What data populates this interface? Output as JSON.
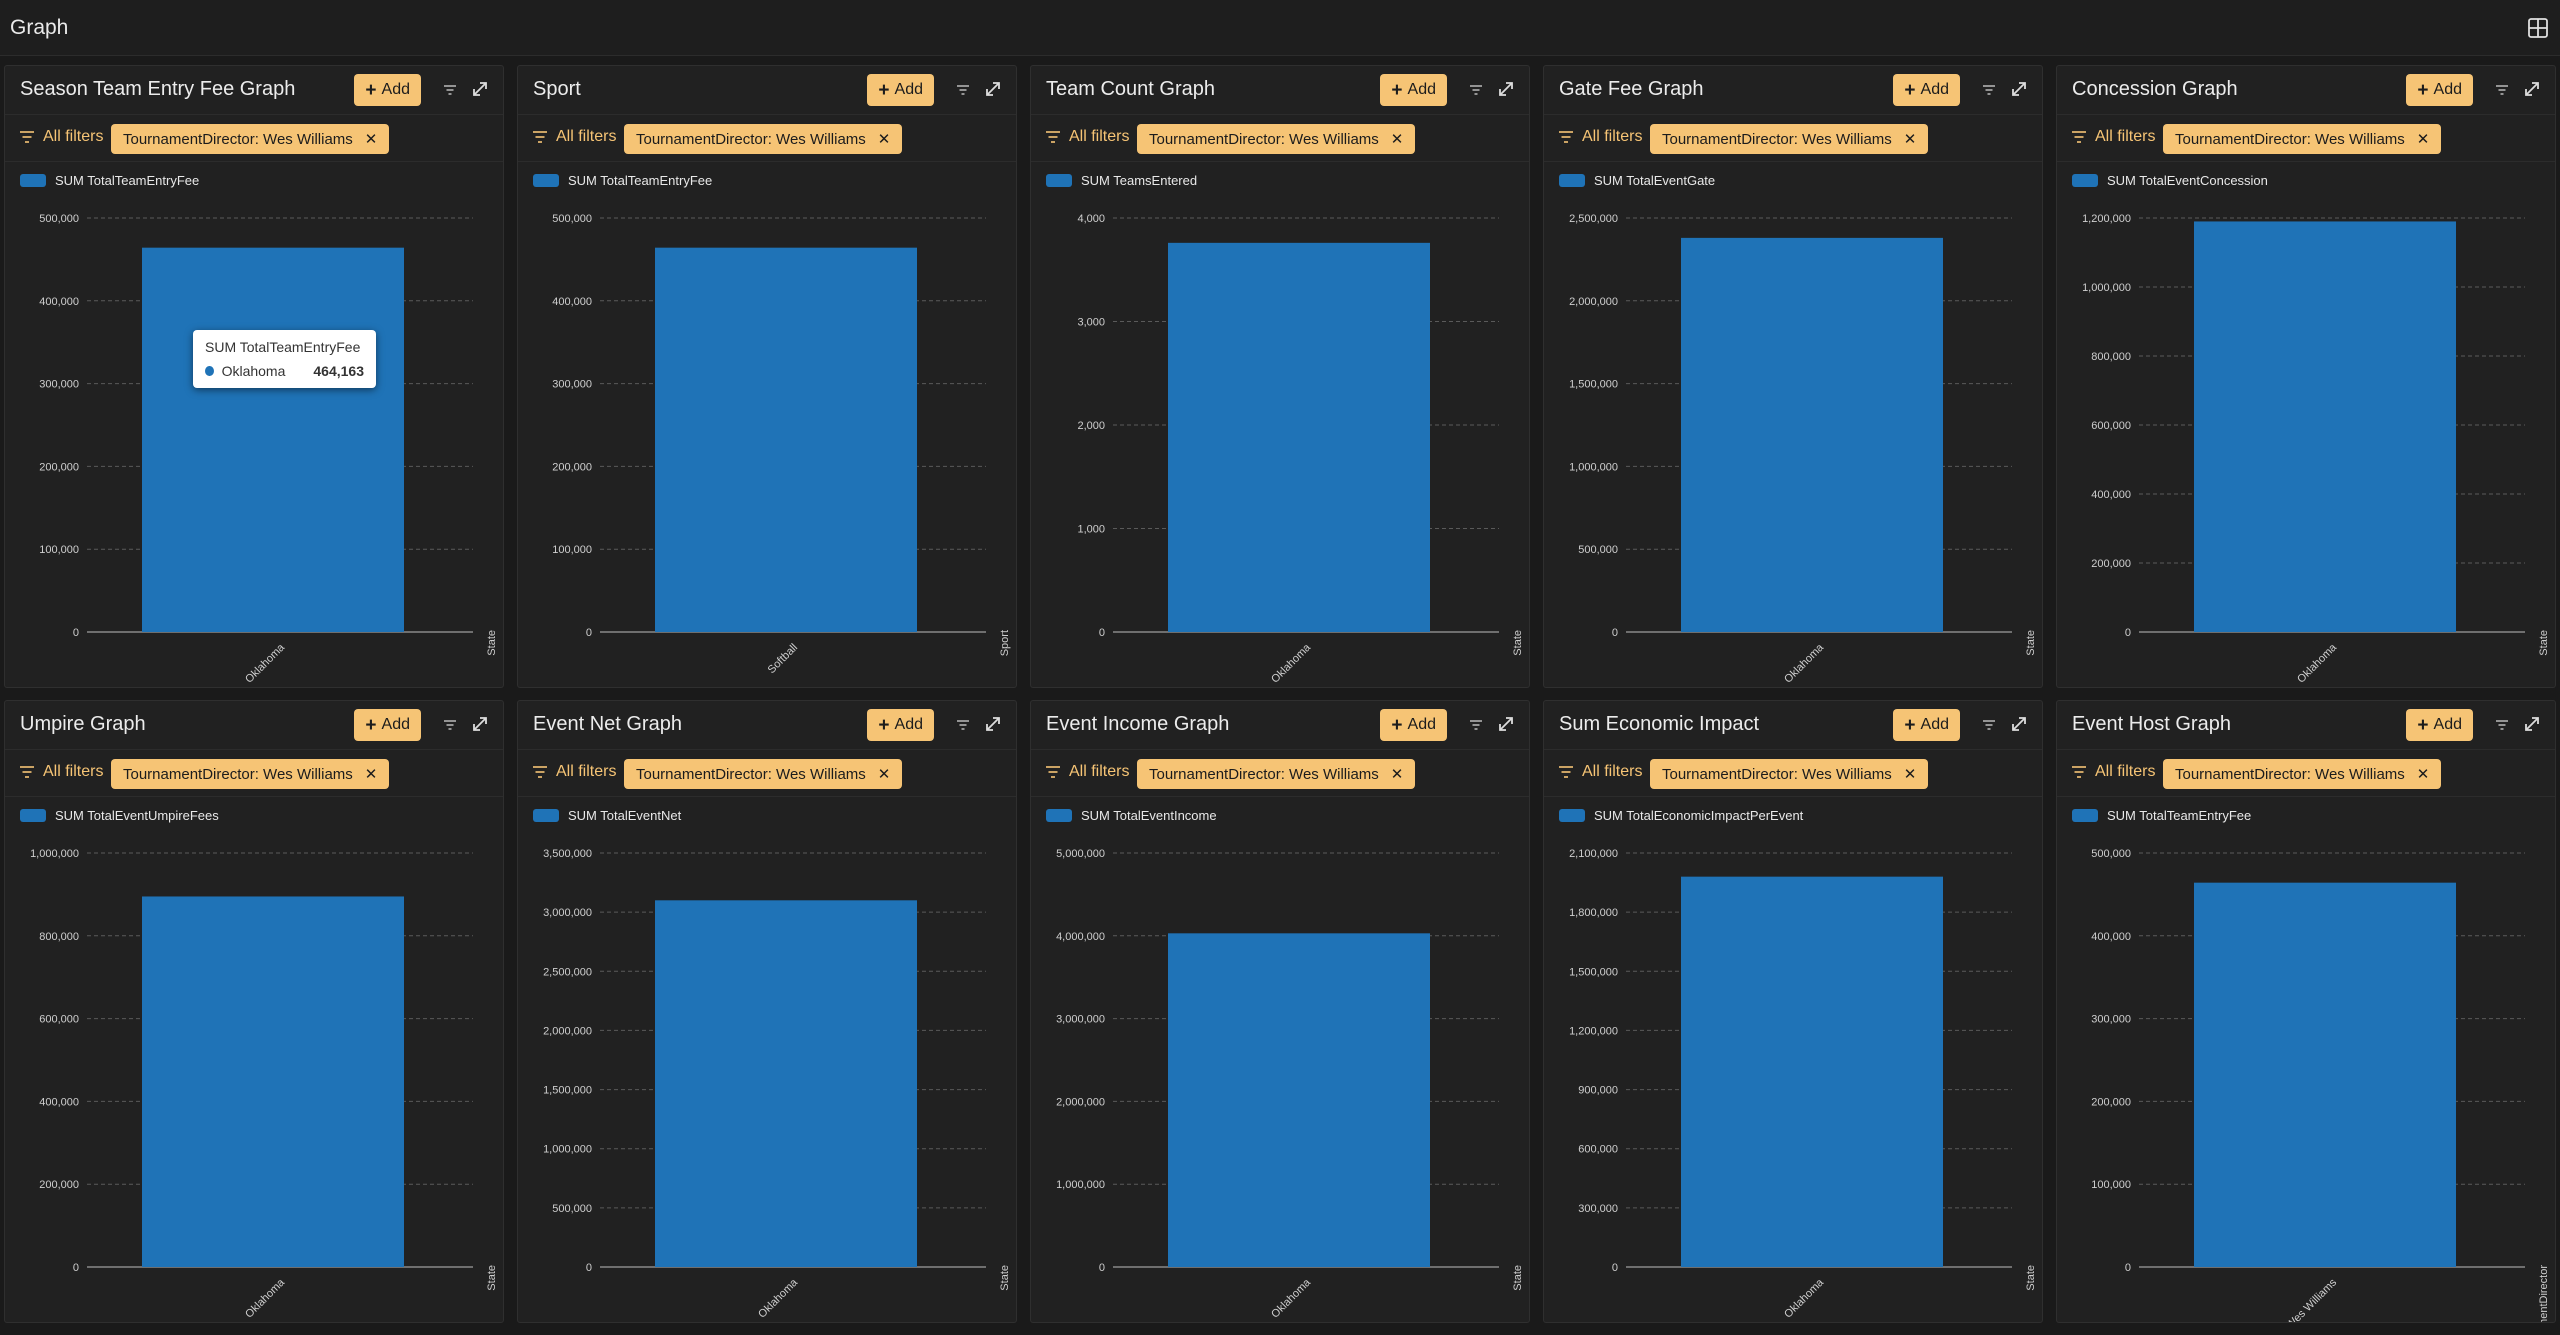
{
  "page": {
    "title": "Graph",
    "layout_icon": "layout-grid-icon"
  },
  "common": {
    "add_label": "Add",
    "all_filters_label": "All filters",
    "filter_chip": "TournamentDirector: Wes Williams",
    "accent_color": "#f6c475",
    "bar_color": "#1f73b7"
  },
  "panels": [
    {
      "title": "Season Team Entry Fee Graph",
      "tooltip": {
        "title": "SUM TotalTeamEntryFee",
        "label": "Oklahoma",
        "value": "464,163"
      },
      "chart_data": {
        "type": "bar",
        "series": [
          {
            "name": "SUM TotalTeamEntryFee",
            "values": [
              464163
            ]
          }
        ],
        "categories": [
          "Oklahoma"
        ],
        "xlabel": "State",
        "ylim": [
          0,
          500000
        ],
        "yticks": [
          "0",
          "100,000",
          "200,000",
          "300,000",
          "400,000",
          "500,000"
        ]
      }
    },
    {
      "title": "Sport",
      "chart_data": {
        "type": "bar",
        "series": [
          {
            "name": "SUM TotalTeamEntryFee",
            "values": [
              464163
            ]
          }
        ],
        "categories": [
          "Softball"
        ],
        "xlabel": "Sport",
        "ylim": [
          0,
          500000
        ],
        "yticks": [
          "0",
          "100,000",
          "200,000",
          "300,000",
          "400,000",
          "500,000"
        ]
      }
    },
    {
      "title": "Team Count Graph",
      "chart_data": {
        "type": "bar",
        "series": [
          {
            "name": "SUM TeamsEntered",
            "values": [
              3760
            ]
          }
        ],
        "categories": [
          "Oklahoma"
        ],
        "xlabel": "State",
        "ylim": [
          0,
          4000
        ],
        "yticks": [
          "0",
          "1,000",
          "2,000",
          "3,000",
          "4,000"
        ]
      }
    },
    {
      "title": "Gate Fee Graph",
      "chart_data": {
        "type": "bar",
        "series": [
          {
            "name": "SUM TotalEventGate",
            "values": [
              2380000
            ]
          }
        ],
        "categories": [
          "Oklahoma"
        ],
        "xlabel": "State",
        "ylim": [
          0,
          2500000
        ],
        "yticks": [
          "0",
          "500,000",
          "1,000,000",
          "1,500,000",
          "2,000,000",
          "2,500,000"
        ]
      }
    },
    {
      "title": "Concession Graph",
      "chart_data": {
        "type": "bar",
        "series": [
          {
            "name": "SUM TotalEventConcession",
            "values": [
              1190000
            ]
          }
        ],
        "categories": [
          "Oklahoma"
        ],
        "xlabel": "State",
        "ylim": [
          0,
          1200000
        ],
        "yticks": [
          "0",
          "200,000",
          "400,000",
          "600,000",
          "800,000",
          "1,000,000",
          "1,200,000"
        ]
      }
    },
    {
      "title": "Umpire Graph",
      "chart_data": {
        "type": "bar",
        "series": [
          {
            "name": "SUM TotalEventUmpireFees",
            "values": [
              895000
            ]
          }
        ],
        "categories": [
          "Oklahoma"
        ],
        "xlabel": "State",
        "ylim": [
          0,
          1000000
        ],
        "yticks": [
          "0",
          "200,000",
          "400,000",
          "600,000",
          "800,000",
          "1,000,000"
        ]
      }
    },
    {
      "title": "Event Net Graph",
      "chart_data": {
        "type": "bar",
        "series": [
          {
            "name": "SUM TotalEventNet",
            "values": [
              3100000
            ]
          }
        ],
        "categories": [
          "Oklahoma"
        ],
        "xlabel": "State",
        "ylim": [
          0,
          3500000
        ],
        "yticks": [
          "0",
          "500,000",
          "1,000,000",
          "1,500,000",
          "2,000,000",
          "2,500,000",
          "3,000,000",
          "3,500,000"
        ]
      }
    },
    {
      "title": "Event Income Graph",
      "chart_data": {
        "type": "bar",
        "series": [
          {
            "name": "SUM TotalEventIncome",
            "values": [
              4030000
            ]
          }
        ],
        "categories": [
          "Oklahoma"
        ],
        "xlabel": "State",
        "ylim": [
          0,
          5000000
        ],
        "yticks": [
          "0",
          "1,000,000",
          "2,000,000",
          "3,000,000",
          "4,000,000",
          "5,000,000"
        ]
      }
    },
    {
      "title": "Sum Economic Impact",
      "chart_data": {
        "type": "bar",
        "series": [
          {
            "name": "SUM TotalEconomicImpactPerEvent",
            "values": [
              1980000
            ]
          }
        ],
        "categories": [
          "Oklahoma"
        ],
        "xlabel": "State",
        "ylim": [
          0,
          2100000
        ],
        "yticks": [
          "0",
          "300,000",
          "600,000",
          "900,000",
          "1,200,000",
          "1,500,000",
          "1,800,000",
          "2,100,000"
        ]
      }
    },
    {
      "title": "Event Host Graph",
      "chart_data": {
        "type": "bar",
        "series": [
          {
            "name": "SUM TotalTeamEntryFee",
            "values": [
              464163
            ]
          }
        ],
        "categories": [
          "Wes Williams"
        ],
        "xlabel": "TournamentDirector",
        "ylim": [
          0,
          500000
        ],
        "yticks": [
          "0",
          "100,000",
          "200,000",
          "300,000",
          "400,000",
          "500,000"
        ]
      }
    }
  ]
}
